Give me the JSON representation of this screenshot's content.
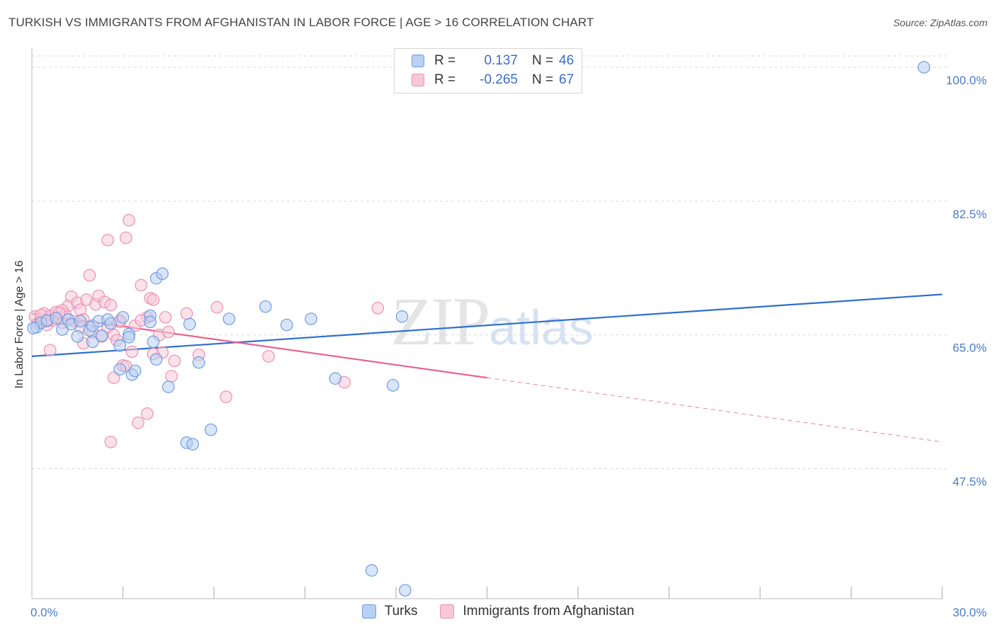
{
  "title": "TURKISH VS IMMIGRANTS FROM AFGHANISTAN IN LABOR FORCE | AGE > 16 CORRELATION CHART",
  "source": "Source: ZipAtlas.com",
  "watermark": {
    "zip": "ZIP",
    "atlas": "atlas"
  },
  "legend": {
    "r_label": "R =",
    "n_label": "N =",
    "turks": {
      "r": "0.137",
      "n": "46"
    },
    "afghan": {
      "r": "-0.265",
      "n": "67"
    }
  },
  "colors": {
    "turks_fill": "#b8d0f2",
    "turks_stroke": "#6f9be0",
    "turks_line": "#2f6fce",
    "afghan_fill": "#f8c8d8",
    "afghan_stroke": "#ec8fb0",
    "afghan_line": "#e8638f",
    "tick": "#4a7cc9",
    "grid": "#d9d9d9"
  },
  "chart_data": {
    "type": "scatter",
    "title": "TURKISH VS IMMIGRANTS FROM AFGHANISTAN IN LABOR FORCE | AGE > 16 CORRELATION CHART",
    "xlabel": "",
    "ylabel": "In Labor Force | Age > 16",
    "xlim": [
      0,
      30
    ],
    "ylim": [
      30.5,
      102.5
    ],
    "x_tick_labels": [
      {
        "value": 0,
        "label": "0.0%"
      },
      {
        "value": 30,
        "label": "30.0%"
      }
    ],
    "y_ticks": [
      {
        "value": 100,
        "label": "100.0%"
      },
      {
        "value": 82.5,
        "label": "82.5%"
      },
      {
        "value": 65,
        "label": "65.0%"
      },
      {
        "value": 47.5,
        "label": "47.5%"
      }
    ],
    "x_minor_ticks": [
      3,
      6,
      9,
      12,
      15,
      18,
      21,
      24,
      27,
      30
    ],
    "series": [
      {
        "name": "Turks",
        "r": 0.137,
        "n": 46,
        "trend": {
          "x0": 0,
          "y0": 62.2,
          "x1": 30,
          "y1": 70.3,
          "solid_to": 30
        },
        "points": [
          [
            0.15,
            66.0
          ],
          [
            0.3,
            66.6
          ],
          [
            0.5,
            66.9
          ],
          [
            0.8,
            67.2
          ],
          [
            1.0,
            65.7
          ],
          [
            1.2,
            67.0
          ],
          [
            1.3,
            66.4
          ],
          [
            1.6,
            66.8
          ],
          [
            1.5,
            64.8
          ],
          [
            1.9,
            65.6
          ],
          [
            2.0,
            66.2
          ],
          [
            2.0,
            64.1
          ],
          [
            2.2,
            66.8
          ],
          [
            2.3,
            64.9
          ],
          [
            2.5,
            67.0
          ],
          [
            2.6,
            66.5
          ],
          [
            2.9,
            60.5
          ],
          [
            2.9,
            63.6
          ],
          [
            3.0,
            67.3
          ],
          [
            3.2,
            65.1
          ],
          [
            3.2,
            64.7
          ],
          [
            3.3,
            59.8
          ],
          [
            3.4,
            60.3
          ],
          [
            3.9,
            67.5
          ],
          [
            3.9,
            66.7
          ],
          [
            4.0,
            64.1
          ],
          [
            4.1,
            61.8
          ],
          [
            4.1,
            72.4
          ],
          [
            4.3,
            73.0
          ],
          [
            4.5,
            58.2
          ],
          [
            5.2,
            66.4
          ],
          [
            5.1,
            50.9
          ],
          [
            5.3,
            50.7
          ],
          [
            5.5,
            61.4
          ],
          [
            5.9,
            52.6
          ],
          [
            6.5,
            67.1
          ],
          [
            7.7,
            68.7
          ],
          [
            8.4,
            66.3
          ],
          [
            9.2,
            67.1
          ],
          [
            10.0,
            59.3
          ],
          [
            11.2,
            34.2
          ],
          [
            11.9,
            58.4
          ],
          [
            12.2,
            67.4
          ],
          [
            12.3,
            31.6
          ],
          [
            29.4,
            100.0
          ],
          [
            0.05,
            65.9
          ]
        ]
      },
      {
        "name": "Immigrants from Afghanistan",
        "r": -0.265,
        "n": 67,
        "trend": {
          "x0": 0,
          "y0": 67.8,
          "x1": 30,
          "y1": 51.0,
          "solid_to": 15
        },
        "points": [
          [
            0.1,
            67.4
          ],
          [
            0.2,
            66.5
          ],
          [
            0.3,
            67.0
          ],
          [
            0.4,
            67.8
          ],
          [
            0.5,
            66.3
          ],
          [
            0.6,
            67.5
          ],
          [
            0.7,
            66.9
          ],
          [
            0.8,
            68.0
          ],
          [
            0.9,
            67.2
          ],
          [
            1.0,
            66.6
          ],
          [
            1.1,
            67.7
          ],
          [
            1.2,
            68.8
          ],
          [
            1.3,
            70.0
          ],
          [
            1.4,
            66.8
          ],
          [
            1.5,
            69.2
          ],
          [
            1.6,
            68.3
          ],
          [
            1.7,
            67.0
          ],
          [
            1.8,
            69.6
          ],
          [
            1.9,
            72.8
          ],
          [
            2.0,
            65.3
          ],
          [
            2.1,
            69.0
          ],
          [
            2.2,
            70.1
          ],
          [
            2.4,
            69.3
          ],
          [
            2.5,
            66.0
          ],
          [
            2.6,
            68.9
          ],
          [
            2.7,
            65.0
          ],
          [
            2.5,
            77.4
          ],
          [
            2.6,
            51.0
          ],
          [
            2.7,
            59.4
          ],
          [
            2.9,
            66.7
          ],
          [
            3.0,
            61.0
          ],
          [
            3.1,
            60.9
          ],
          [
            3.1,
            77.7
          ],
          [
            3.2,
            80.0
          ],
          [
            3.3,
            62.8
          ],
          [
            3.4,
            66.2
          ],
          [
            3.5,
            53.5
          ],
          [
            3.6,
            71.5
          ],
          [
            3.8,
            67.3
          ],
          [
            3.8,
            54.7
          ],
          [
            3.9,
            69.8
          ],
          [
            4.0,
            69.6
          ],
          [
            4.2,
            65.0
          ],
          [
            4.3,
            62.7
          ],
          [
            4.4,
            67.3
          ],
          [
            4.5,
            65.4
          ],
          [
            4.6,
            59.6
          ],
          [
            4.7,
            61.6
          ],
          [
            5.1,
            67.8
          ],
          [
            5.5,
            62.4
          ],
          [
            6.1,
            68.6
          ],
          [
            6.4,
            56.9
          ],
          [
            7.8,
            62.2
          ],
          [
            11.4,
            68.5
          ],
          [
            10.3,
            58.8
          ],
          [
            0.3,
            67.6
          ],
          [
            0.6,
            63.0
          ],
          [
            1.0,
            68.2
          ],
          [
            0.9,
            67.9
          ],
          [
            2.9,
            66.9
          ],
          [
            1.6,
            66.0
          ],
          [
            4.0,
            62.5
          ],
          [
            2.3,
            64.8
          ],
          [
            0.5,
            66.8
          ],
          [
            3.6,
            66.9
          ],
          [
            1.7,
            63.9
          ],
          [
            2.8,
            64.3
          ]
        ]
      }
    ]
  }
}
